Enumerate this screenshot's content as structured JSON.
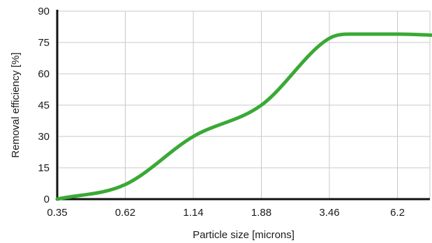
{
  "chart_data": {
    "type": "line",
    "title": "",
    "xlabel": "Particle size [microns]",
    "ylabel": "Removal efficiency [%]",
    "x_tick_labels": [
      "0.35",
      "0.62",
      "1.14",
      "1.88",
      "3.46",
      "6.2"
    ],
    "y_ticks": [
      0,
      15,
      30,
      45,
      60,
      75,
      90
    ],
    "ylim": [
      0,
      90
    ],
    "grid": true,
    "series": [
      {
        "color": "#3aa935",
        "x": [
          0.35,
          0.62,
          1.14,
          1.88,
          3.46,
          4.5,
          6.2,
          8.5
        ],
        "y": [
          0,
          7,
          30,
          45,
          77,
          79,
          79,
          78
        ]
      }
    ]
  }
}
